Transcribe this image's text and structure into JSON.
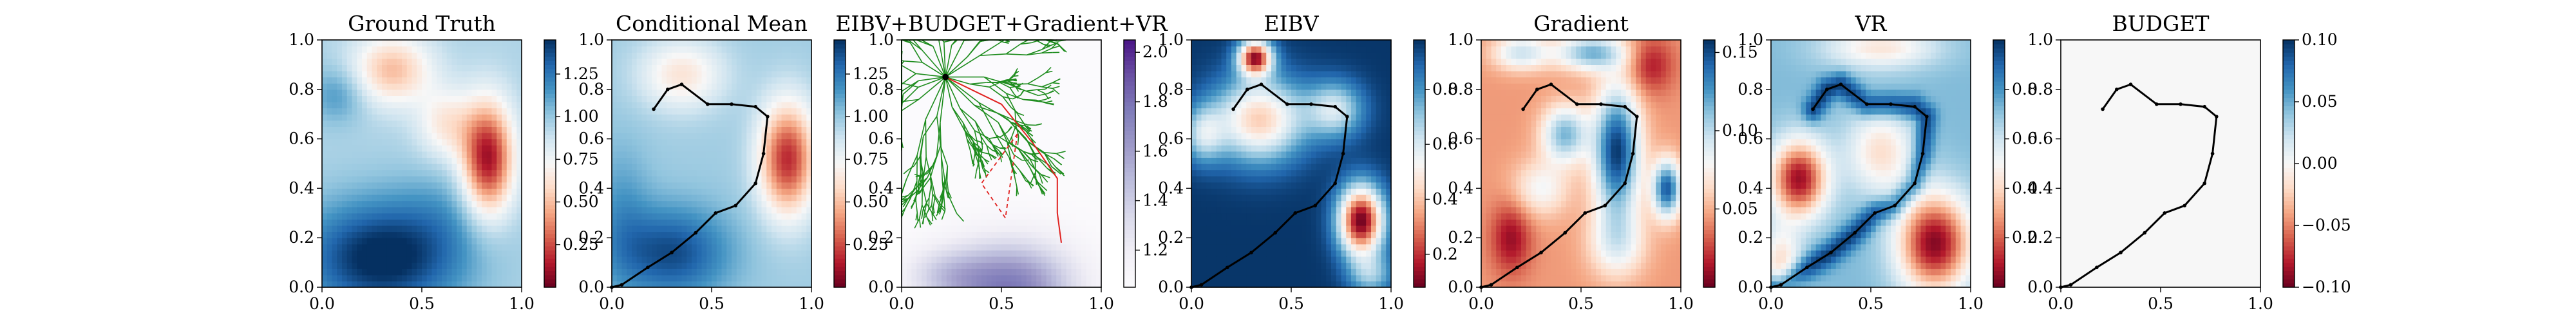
{
  "chart_data": [
    {
      "type": "heatmap",
      "title": "Ground Truth",
      "cmap": "RdBu",
      "xlim": [
        0,
        1
      ],
      "ylim": [
        0,
        1
      ],
      "xticks": [
        "0.0",
        "0.5",
        "1.0"
      ],
      "yticks": [
        "0.0",
        "0.2",
        "0.4",
        "0.6",
        "0.8",
        "1.0"
      ],
      "colorbar": {
        "min": 0.0,
        "max": 1.45,
        "ticks": [
          "0.25",
          "0.50",
          "0.75",
          "1.00",
          "1.25"
        ],
        "tick_values": [
          0.25,
          0.5,
          0.75,
          1.0,
          1.25
        ]
      },
      "field": {
        "base": 0.95,
        "blobs": [
          {
            "x": 0.83,
            "y": 0.52,
            "sx": 0.09,
            "sy": 0.16,
            "a": -0.85
          },
          {
            "x": 0.35,
            "y": 0.88,
            "sx": 0.14,
            "sy": 0.1,
            "a": -0.45
          },
          {
            "x": 0.62,
            "y": 0.66,
            "sx": 0.1,
            "sy": 0.1,
            "a": -0.3
          },
          {
            "x": 0.3,
            "y": 0.12,
            "sx": 0.28,
            "sy": 0.16,
            "a": 0.55
          },
          {
            "x": 0.08,
            "y": 0.78,
            "sx": 0.1,
            "sy": 0.08,
            "a": 0.2
          },
          {
            "x": 0.62,
            "y": 0.3,
            "sx": 0.18,
            "sy": 0.14,
            "a": 0.1
          }
        ]
      }
    },
    {
      "type": "heatmap",
      "title": "Conditional Mean",
      "cmap": "RdBu",
      "xlim": [
        0,
        1
      ],
      "ylim": [
        0,
        1
      ],
      "xticks": [
        "0.0",
        "0.5",
        "1.0"
      ],
      "yticks": [
        "0.0",
        "0.2",
        "0.4",
        "0.6",
        "0.8",
        "1.0"
      ],
      "colorbar": {
        "min": 0.0,
        "max": 1.45,
        "ticks": [
          "0.25",
          "0.50",
          "0.75",
          "1.00",
          "1.25"
        ],
        "tick_values": [
          0.25,
          0.5,
          0.75,
          1.0,
          1.25
        ]
      },
      "field": {
        "base": 0.98,
        "blobs": [
          {
            "x": 0.88,
            "y": 0.52,
            "sx": 0.1,
            "sy": 0.16,
            "a": -0.8
          },
          {
            "x": 0.35,
            "y": 0.86,
            "sx": 0.15,
            "sy": 0.1,
            "a": -0.35
          },
          {
            "x": 0.3,
            "y": 0.14,
            "sx": 0.2,
            "sy": 0.13,
            "a": 0.4
          },
          {
            "x": 0.05,
            "y": 0.3,
            "sx": 0.1,
            "sy": 0.2,
            "a": 0.15
          }
        ]
      },
      "path": [
        [
          0.21,
          0.72
        ],
        [
          0.28,
          0.8
        ],
        [
          0.35,
          0.82
        ],
        [
          0.48,
          0.74
        ],
        [
          0.6,
          0.74
        ],
        [
          0.72,
          0.73
        ],
        [
          0.78,
          0.69
        ],
        [
          0.76,
          0.54
        ],
        [
          0.72,
          0.42
        ],
        [
          0.62,
          0.33
        ],
        [
          0.52,
          0.3
        ],
        [
          0.42,
          0.22
        ],
        [
          0.3,
          0.14
        ],
        [
          0.18,
          0.08
        ],
        [
          0.05,
          0.01
        ],
        [
          0.0,
          0.0
        ]
      ]
    },
    {
      "type": "heatmap",
      "title": "EIBV+BUDGET+Gradient+VR",
      "cmap": "Purples",
      "xlim": [
        0,
        1
      ],
      "ylim": [
        0,
        1
      ],
      "xticks": [
        "0.0",
        "0.5",
        "1.0"
      ],
      "yticks": [
        "0.0",
        "0.2",
        "0.4",
        "0.6",
        "0.8",
        "1.0"
      ],
      "colorbar": {
        "min": 1.05,
        "max": 2.05,
        "ticks": [
          "1.2",
          "1.4",
          "1.6",
          "1.8",
          "2.0"
        ],
        "tick_values": [
          1.2,
          1.4,
          1.6,
          1.8,
          2.0
        ]
      },
      "field": {
        "base": 1.06,
        "blobs": [
          {
            "x": 0.55,
            "y": 0.0,
            "sx": 0.22,
            "sy": 0.13,
            "a": 0.7
          },
          {
            "x": 0.22,
            "y": 0.05,
            "sx": 0.15,
            "sy": 0.08,
            "a": 0.25
          }
        ]
      },
      "tree_root": [
        0.22,
        0.85
      ],
      "selected_path": [
        [
          0.22,
          0.85
        ],
        [
          0.5,
          0.74
        ],
        [
          0.66,
          0.58
        ],
        [
          0.78,
          0.44
        ],
        [
          0.78,
          0.3
        ],
        [
          0.8,
          0.18
        ]
      ],
      "dashed_triangle": [
        [
          0.58,
          0.62
        ],
        [
          0.4,
          0.42
        ],
        [
          0.52,
          0.28
        ]
      ]
    },
    {
      "type": "heatmap",
      "title": "EIBV",
      "cmap": "RdBu",
      "xlim": [
        0,
        1
      ],
      "ylim": [
        0,
        1
      ],
      "xticks": [
        "0.0",
        "0.5",
        "1.0"
      ],
      "yticks": [
        "0.0",
        "0.2",
        "0.4",
        "0.6",
        "0.8",
        "1.0"
      ],
      "colorbar": {
        "min": 0.08,
        "max": 0.98,
        "ticks": [
          "0.2",
          "0.4",
          "0.6",
          "0.8"
        ],
        "tick_values": [
          0.2,
          0.4,
          0.6,
          0.8
        ]
      },
      "field": {
        "base": 0.97,
        "blobs": [
          {
            "x": 0.32,
            "y": 0.93,
            "sx": 0.06,
            "sy": 0.05,
            "a": -0.8
          },
          {
            "x": 0.34,
            "y": 0.68,
            "sx": 0.16,
            "sy": 0.12,
            "a": -0.55
          },
          {
            "x": 0.72,
            "y": 0.72,
            "sx": 0.1,
            "sy": 0.08,
            "a": -0.35
          },
          {
            "x": 0.85,
            "y": 0.27,
            "sx": 0.08,
            "sy": 0.1,
            "a": -0.88
          },
          {
            "x": 0.06,
            "y": 0.62,
            "sx": 0.07,
            "sy": 0.08,
            "a": -0.3
          },
          {
            "x": 0.9,
            "y": 0.05,
            "sx": 0.08,
            "sy": 0.06,
            "a": -0.25
          }
        ]
      },
      "path": [
        [
          0.21,
          0.72
        ],
        [
          0.28,
          0.8
        ],
        [
          0.35,
          0.82
        ],
        [
          0.48,
          0.74
        ],
        [
          0.6,
          0.74
        ],
        [
          0.72,
          0.73
        ],
        [
          0.78,
          0.69
        ],
        [
          0.76,
          0.54
        ],
        [
          0.72,
          0.42
        ],
        [
          0.62,
          0.33
        ],
        [
          0.52,
          0.3
        ],
        [
          0.42,
          0.22
        ],
        [
          0.3,
          0.14
        ],
        [
          0.18,
          0.08
        ],
        [
          0.05,
          0.01
        ],
        [
          0.0,
          0.0
        ]
      ]
    },
    {
      "type": "heatmap",
      "title": "Gradient",
      "cmap": "RdBu",
      "xlim": [
        0,
        1
      ],
      "ylim": [
        0,
        1
      ],
      "xticks": [
        "0.0",
        "0.5",
        "1.0"
      ],
      "yticks": [
        "0.0",
        "0.2",
        "0.4",
        "0.6",
        "0.8",
        "1.0"
      ],
      "colorbar": {
        "min": 0.0,
        "max": 0.158,
        "ticks": [
          "0.05",
          "0.10",
          "0.15"
        ],
        "tick_values": [
          0.05,
          0.1,
          0.15
        ]
      },
      "field": {
        "base": 0.045,
        "blobs": [
          {
            "x": 0.68,
            "y": 0.55,
            "sx": 0.08,
            "sy": 0.18,
            "a": 0.11
          },
          {
            "x": 0.42,
            "y": 0.62,
            "sx": 0.08,
            "sy": 0.08,
            "a": 0.07
          },
          {
            "x": 0.55,
            "y": 0.95,
            "sx": 0.12,
            "sy": 0.05,
            "a": 0.07
          },
          {
            "x": 0.93,
            "y": 0.4,
            "sx": 0.05,
            "sy": 0.08,
            "a": 0.1
          },
          {
            "x": 0.2,
            "y": 0.95,
            "sx": 0.1,
            "sy": 0.05,
            "a": 0.05
          },
          {
            "x": 0.3,
            "y": 0.4,
            "sx": 0.1,
            "sy": 0.08,
            "a": 0.035
          },
          {
            "x": 0.68,
            "y": 0.18,
            "sx": 0.1,
            "sy": 0.1,
            "a": 0.04
          },
          {
            "x": 0.15,
            "y": 0.2,
            "sx": 0.07,
            "sy": 0.1,
            "a": -0.035
          },
          {
            "x": 0.85,
            "y": 0.9,
            "sx": 0.08,
            "sy": 0.08,
            "a": -0.03
          }
        ]
      },
      "path": [
        [
          0.21,
          0.72
        ],
        [
          0.28,
          0.8
        ],
        [
          0.35,
          0.82
        ],
        [
          0.48,
          0.74
        ],
        [
          0.6,
          0.74
        ],
        [
          0.72,
          0.73
        ],
        [
          0.78,
          0.69
        ],
        [
          0.76,
          0.54
        ],
        [
          0.72,
          0.42
        ],
        [
          0.62,
          0.33
        ],
        [
          0.52,
          0.3
        ],
        [
          0.42,
          0.22
        ],
        [
          0.3,
          0.14
        ],
        [
          0.18,
          0.08
        ],
        [
          0.05,
          0.01
        ],
        [
          0.0,
          0.0
        ]
      ]
    },
    {
      "type": "heatmap",
      "title": "VR",
      "cmap": "RdBu",
      "xlim": [
        0,
        1
      ],
      "ylim": [
        0,
        1
      ],
      "xticks": [
        "0.0",
        "0.5",
        "1.0"
      ],
      "yticks": [
        "0.0",
        "0.2",
        "0.4",
        "0.6",
        "0.8",
        "1.0"
      ],
      "colorbar": {
        "min": 0.0,
        "max": 1.0,
        "ticks": [
          "0.2",
          "0.4",
          "0.6",
          "0.8"
        ],
        "tick_values": [
          0.2,
          0.4,
          0.6,
          0.8
        ]
      },
      "field": {
        "base": 0.72,
        "blobs": [
          {
            "x": 0.14,
            "y": 0.44,
            "sx": 0.1,
            "sy": 0.11,
            "a": -0.65
          },
          {
            "x": 0.82,
            "y": 0.18,
            "sx": 0.13,
            "sy": 0.14,
            "a": -0.68
          },
          {
            "x": 0.55,
            "y": 0.55,
            "sx": 0.12,
            "sy": 0.12,
            "a": -0.3
          },
          {
            "x": 0.55,
            "y": 0.97,
            "sx": 0.2,
            "sy": 0.06,
            "a": -0.28
          },
          {
            "x": 0.05,
            "y": 0.1,
            "sx": 0.07,
            "sy": 0.1,
            "a": -0.3
          }
        ],
        "path_boost": 0.26
      },
      "path": [
        [
          0.21,
          0.72
        ],
        [
          0.28,
          0.8
        ],
        [
          0.35,
          0.82
        ],
        [
          0.48,
          0.74
        ],
        [
          0.6,
          0.74
        ],
        [
          0.72,
          0.73
        ],
        [
          0.78,
          0.69
        ],
        [
          0.76,
          0.54
        ],
        [
          0.72,
          0.42
        ],
        [
          0.62,
          0.33
        ],
        [
          0.52,
          0.3
        ],
        [
          0.42,
          0.22
        ],
        [
          0.3,
          0.14
        ],
        [
          0.18,
          0.08
        ],
        [
          0.05,
          0.01
        ],
        [
          0.0,
          0.0
        ]
      ]
    },
    {
      "type": "heatmap",
      "title": "BUDGET",
      "cmap": "RdBu",
      "xlim": [
        0,
        1
      ],
      "ylim": [
        0,
        1
      ],
      "xticks": [
        "0.0",
        "0.5",
        "1.0"
      ],
      "yticks": [
        "0.0",
        "0.2",
        "0.4",
        "0.6",
        "0.8",
        "1.0"
      ],
      "colorbar": {
        "min": -0.1,
        "max": 0.1,
        "ticks": [
          "−0.10",
          "−0.05",
          "0.00",
          "0.05",
          "0.10"
        ],
        "tick_values": [
          -0.1,
          -0.05,
          0.0,
          0.05,
          0.1
        ]
      },
      "field": {
        "base": 0.0,
        "blobs": []
      },
      "path": [
        [
          0.21,
          0.72
        ],
        [
          0.28,
          0.8
        ],
        [
          0.35,
          0.82
        ],
        [
          0.48,
          0.74
        ],
        [
          0.6,
          0.74
        ],
        [
          0.72,
          0.73
        ],
        [
          0.78,
          0.69
        ],
        [
          0.76,
          0.54
        ],
        [
          0.72,
          0.42
        ],
        [
          0.62,
          0.33
        ],
        [
          0.52,
          0.3
        ],
        [
          0.42,
          0.22
        ],
        [
          0.3,
          0.14
        ],
        [
          0.18,
          0.08
        ],
        [
          0.05,
          0.01
        ],
        [
          0.0,
          0.0
        ]
      ]
    }
  ]
}
